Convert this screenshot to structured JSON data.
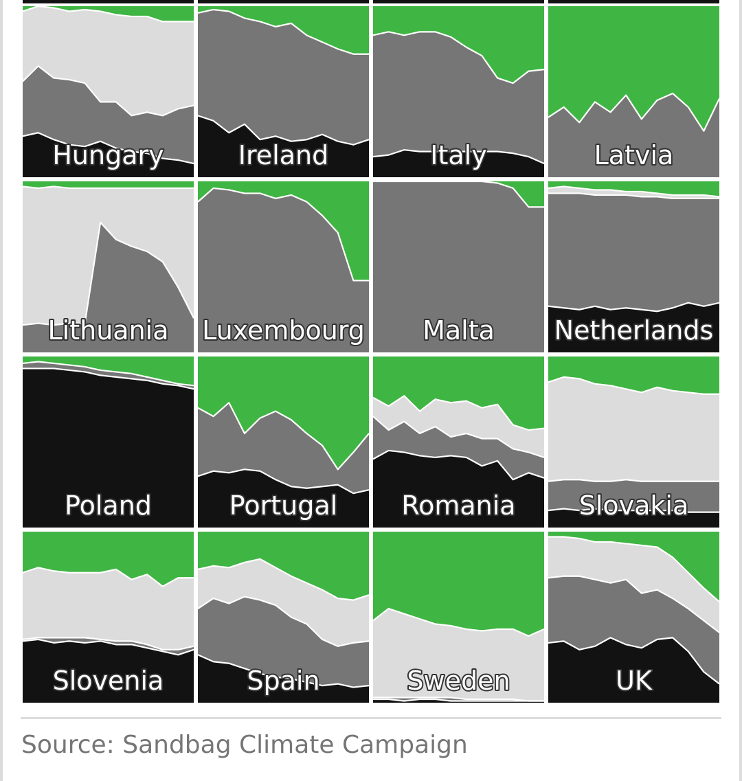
{
  "source": "Source: Sandbag Climate Campaign",
  "colors": {
    "coal": "#121212",
    "gas": "#767676",
    "nuclear": "#dcdcdc",
    "renewables": "#3fb543",
    "separator": "#ffffff"
  },
  "chart_data": {
    "type": "area",
    "stacking": "normalized",
    "y_range": [
      0,
      100
    ],
    "unit": "%",
    "grid_columns": 4,
    "panels": [
      {
        "country": "Hungary",
        "coal": [
          24,
          26,
          22,
          19,
          18,
          21,
          17,
          15,
          14,
          11,
          10,
          8
        ],
        "gas": [
          56,
          65,
          58,
          57,
          55,
          44,
          44,
          36,
          38,
          36,
          40,
          42
        ],
        "nuclear": [
          97,
          100,
          99,
          97,
          98,
          97,
          95,
          94,
          94,
          91,
          91,
          91
        ]
      },
      {
        "country": "Ireland",
        "coal": [
          36,
          33,
          26,
          31,
          22,
          24,
          21,
          22,
          25,
          21,
          19,
          22
        ],
        "gas": [
          96,
          98,
          97,
          93,
          91,
          88,
          90,
          83,
          79,
          75,
          72,
          72
        ],
        "nuclear": [
          96,
          98,
          97,
          93,
          91,
          88,
          90,
          83,
          79,
          75,
          72,
          72
        ]
      },
      {
        "country": "Italy",
        "coal": [
          12,
          13,
          16,
          15,
          15,
          15,
          15,
          15,
          15,
          14,
          12,
          8
        ],
        "gas": [
          83,
          85,
          83,
          85,
          85,
          82,
          76,
          71,
          58,
          55,
          62,
          63
        ],
        "nuclear": [
          83,
          85,
          83,
          85,
          85,
          82,
          76,
          71,
          58,
          55,
          62,
          63
        ]
      },
      {
        "country": "Latvia",
        "coal": [
          0,
          0,
          0,
          0,
          0,
          0,
          0,
          0,
          0,
          0,
          0,
          0
        ],
        "gas": [
          35,
          41,
          32,
          44,
          38,
          48,
          34,
          45,
          49,
          41,
          27,
          46
        ],
        "nuclear": [
          35,
          41,
          32,
          44,
          38,
          48,
          34,
          45,
          49,
          41,
          27,
          46
        ]
      },
      {
        "country": "Lithuania",
        "coal": [
          0,
          0,
          0,
          0,
          0,
          0,
          0,
          0,
          0,
          0,
          0,
          0
        ],
        "gas": [
          16,
          17,
          16,
          17,
          17,
          76,
          66,
          62,
          59,
          53,
          38,
          20
        ],
        "nuclear": [
          97,
          96,
          97,
          96,
          96,
          96,
          96,
          96,
          96,
          96,
          96,
          96
        ]
      },
      {
        "country": "Luxembourg",
        "coal": [
          0,
          0,
          0,
          0,
          0,
          0,
          0,
          0,
          0,
          0,
          0,
          0
        ],
        "gas": [
          88,
          96,
          95,
          93,
          93,
          90,
          92,
          88,
          80,
          70,
          42,
          42
        ],
        "nuclear": [
          88,
          96,
          95,
          93,
          93,
          90,
          92,
          88,
          80,
          70,
          42,
          42
        ]
      },
      {
        "country": "Malta",
        "coal": [
          0,
          0,
          0,
          0,
          0,
          0,
          0,
          0,
          0,
          0,
          0,
          0
        ],
        "gas": [
          100,
          100,
          100,
          100,
          100,
          100,
          100,
          100,
          99,
          96,
          85,
          85
        ],
        "nuclear": [
          100,
          100,
          100,
          100,
          100,
          100,
          100,
          100,
          99,
          96,
          85,
          85
        ]
      },
      {
        "country": "Netherlands",
        "coal": [
          27,
          26,
          25,
          27,
          25,
          26,
          25,
          24,
          26,
          29,
          27,
          29
        ],
        "gas": [
          93,
          93,
          93,
          92,
          92,
          92,
          91,
          91,
          90,
          90,
          90,
          90
        ],
        "nuclear": [
          96,
          97,
          96,
          95,
          95,
          94,
          94,
          93,
          92,
          92,
          92,
          91
        ]
      },
      {
        "country": "Poland",
        "coal": [
          93,
          93,
          93,
          92,
          91,
          89,
          88,
          87,
          86,
          84,
          83,
          81
        ],
        "gas": [
          96,
          97,
          96,
          95,
          94,
          92,
          91,
          90,
          88,
          86,
          84,
          83
        ],
        "nuclear": [
          96,
          97,
          96,
          95,
          94,
          92,
          91,
          90,
          88,
          86,
          84,
          83
        ]
      },
      {
        "country": "Portugal",
        "coal": [
          30,
          33,
          32,
          34,
          33,
          28,
          24,
          23,
          24,
          25,
          20,
          22
        ],
        "gas": [
          70,
          65,
          73,
          55,
          64,
          68,
          63,
          55,
          48,
          34,
          44,
          55
        ],
        "nuclear": [
          70,
          65,
          73,
          55,
          64,
          68,
          63,
          55,
          48,
          34,
          44,
          55
        ]
      },
      {
        "country": "Romania",
        "coal": [
          40,
          45,
          44,
          42,
          41,
          42,
          41,
          36,
          39,
          28,
          32,
          29
        ],
        "gas": [
          65,
          57,
          62,
          55,
          59,
          53,
          55,
          52,
          52,
          46,
          44,
          41
        ],
        "nuclear": [
          76,
          71,
          77,
          68,
          75,
          73,
          74,
          70,
          72,
          60,
          57,
          58
        ]
      },
      {
        "country": "Slovakia",
        "coal": [
          10,
          11,
          10,
          11,
          10,
          10,
          10,
          10,
          10,
          9,
          9,
          9
        ],
        "gas": [
          27,
          28,
          28,
          27,
          27,
          28,
          27,
          27,
          27,
          27,
          27,
          27
        ],
        "nuclear": [
          85,
          88,
          87,
          84,
          83,
          81,
          79,
          82,
          80,
          79,
          78,
          78
        ]
      },
      {
        "country": "Slovenia",
        "coal": [
          36,
          37,
          35,
          36,
          35,
          36,
          34,
          34,
          32,
          30,
          28,
          31
        ],
        "gas": [
          37,
          38,
          38,
          38,
          38,
          37,
          36,
          36,
          34,
          31,
          31,
          33
        ],
        "nuclear": [
          76,
          79,
          77,
          76,
          76,
          76,
          78,
          72,
          75,
          68,
          73,
          73
        ]
      },
      {
        "country": "Spain",
        "coal": [
          28,
          24,
          23,
          20,
          17,
          15,
          14,
          12,
          10,
          11,
          9,
          10
        ],
        "gas": [
          55,
          61,
          58,
          62,
          60,
          57,
          50,
          46,
          37,
          33,
          35,
          36
        ],
        "nuclear": [
          78,
          80,
          79,
          82,
          84,
          79,
          74,
          70,
          66,
          61,
          60,
          63
        ]
      },
      {
        "country": "Sweden",
        "coal": [
          2,
          2,
          1,
          2,
          2,
          1,
          1,
          1,
          1,
          1,
          1,
          1
        ],
        "gas": [
          3,
          3,
          3,
          3,
          3,
          3,
          2,
          2,
          2,
          2,
          1,
          1
        ],
        "nuclear": [
          48,
          55,
          52,
          49,
          46,
          45,
          43,
          42,
          43,
          43,
          39,
          43
        ]
      },
      {
        "country": "UK",
        "coal": [
          35,
          36,
          31,
          33,
          38,
          34,
          32,
          37,
          38,
          30,
          18,
          11
        ],
        "gas": [
          73,
          74,
          74,
          72,
          70,
          72,
          64,
          66,
          61,
          55,
          48,
          41
        ],
        "nuclear": [
          97,
          97,
          96,
          94,
          94,
          93,
          92,
          91,
          85,
          76,
          67,
          59
        ]
      }
    ],
    "partial_top_row_visible": true
  }
}
